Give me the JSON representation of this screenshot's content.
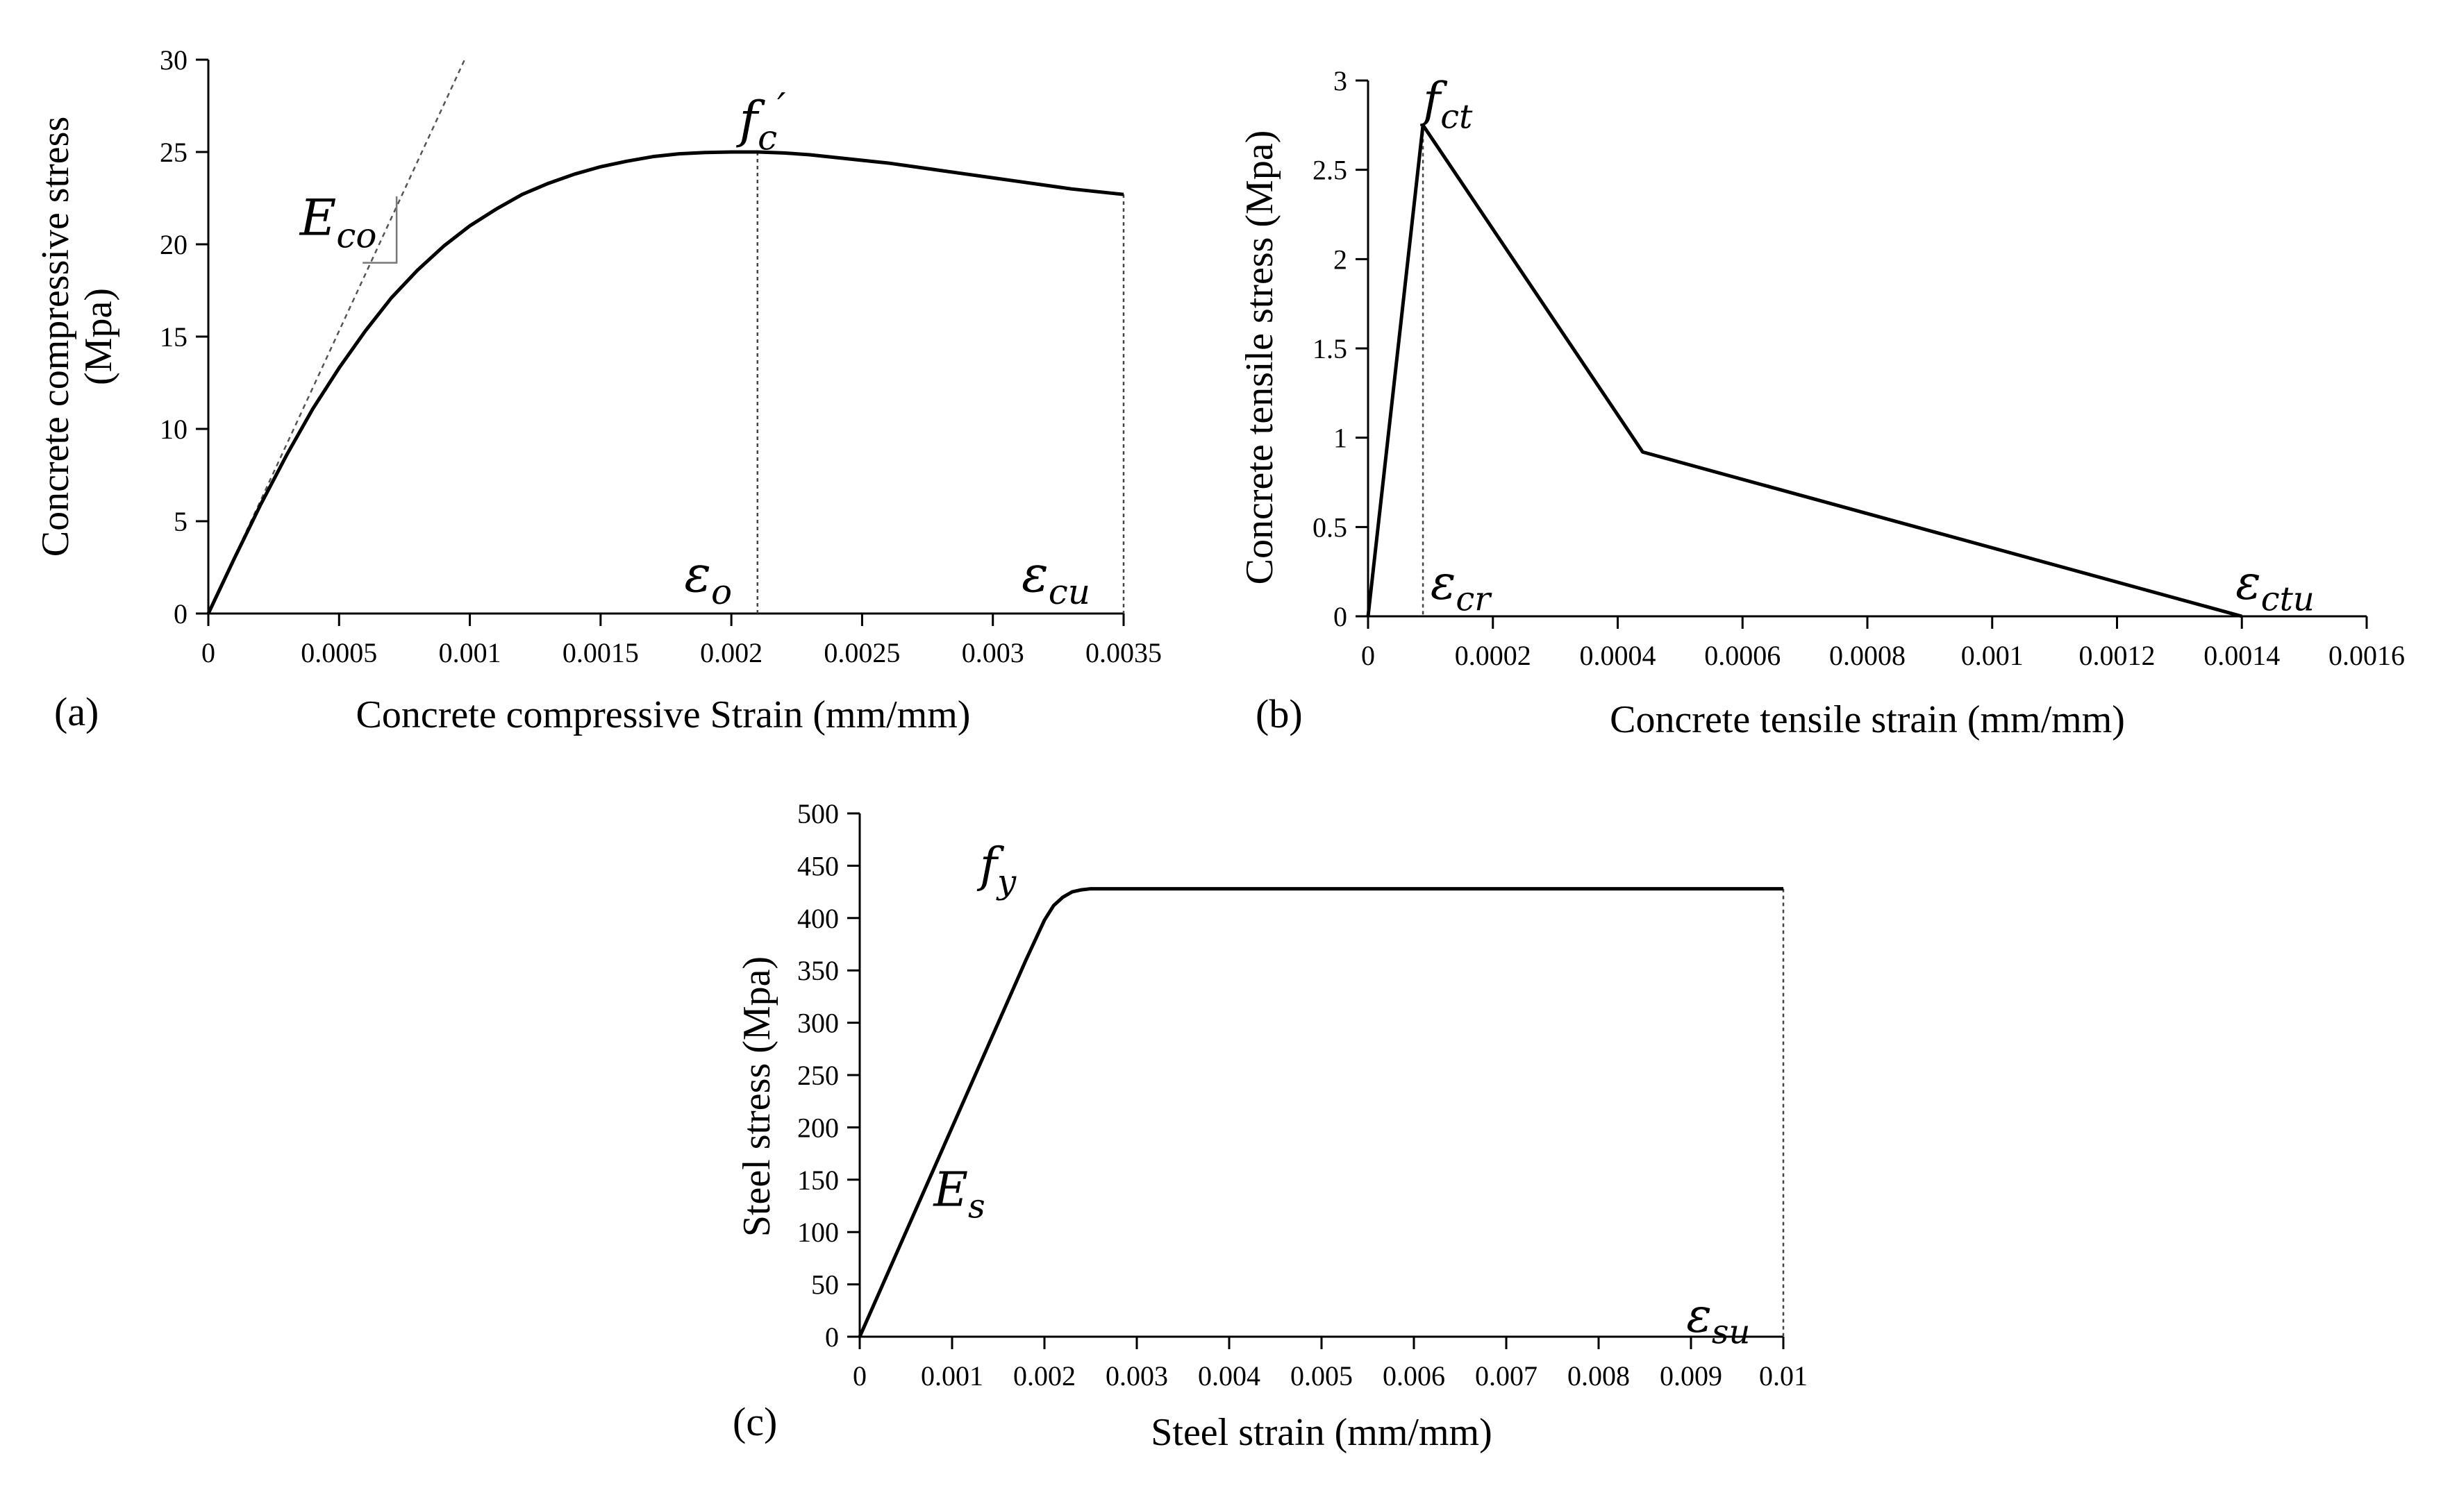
{
  "chart_data": [
    {
      "type": "line",
      "panel_label": "(a)",
      "xlabel": "Concrete compressive Strain (mm/mm)",
      "ylabel_lines": [
        "Concrete compressive stress",
        "(Mpa)"
      ],
      "xlim": [
        0,
        0.0035
      ],
      "ylim": [
        0,
        30
      ],
      "x_ticks": [
        0,
        0.0005,
        0.001,
        0.0015,
        0.002,
        0.0025,
        0.003,
        0.0035
      ],
      "x_tick_labels": [
        "0",
        "0.0005",
        "0.001",
        "0.0015",
        "0.002",
        "0.0025",
        "0.003",
        "0.0035"
      ],
      "y_ticks": [
        0,
        5,
        10,
        15,
        20,
        25,
        30
      ],
      "y_tick_labels": [
        "0",
        "5",
        "10",
        "15",
        "20",
        "25",
        "30"
      ],
      "grid": false,
      "series": [
        {
          "x": [
            0,
            0.0001,
            0.0002,
            0.0003,
            0.0004,
            0.0005,
            0.0006,
            0.0007,
            0.0008,
            0.0009,
            0.001,
            0.0011,
            0.0012,
            0.0013,
            0.0014,
            0.0015,
            0.0016,
            0.0017,
            0.0018,
            0.0019,
            0.002,
            0.0021,
            0.0022,
            0.0023,
            0.0024,
            0.0025,
            0.0026,
            0.0027,
            0.0028,
            0.0029,
            0.003,
            0.0031,
            0.0032,
            0.0033,
            0.0034,
            0.0035
          ],
          "y": [
            0,
            3.0,
            5.9,
            8.6,
            11.1,
            13.3,
            15.3,
            17.1,
            18.6,
            19.9,
            21.0,
            21.9,
            22.7,
            23.3,
            23.8,
            24.2,
            24.5,
            24.75,
            24.9,
            24.97,
            25.0,
            25.0,
            24.95,
            24.85,
            24.7,
            24.55,
            24.4,
            24.2,
            24.0,
            23.8,
            23.6,
            23.4,
            23.2,
            23.0,
            22.85,
            22.7
          ]
        }
      ],
      "tangent_line": {
        "x": [
          0,
          0.00098
        ],
        "y": [
          0,
          30
        ]
      },
      "slope_triangle": {
        "x": [
          0.00059,
          0.00072
        ],
        "y": [
          19.0,
          22.6
        ]
      },
      "reference_lines": [
        {
          "x": 0.0021,
          "y": 25.0
        },
        {
          "x": 0.0035,
          "y": 22.7
        }
      ],
      "annotations": [
        {
          "base": "E",
          "sub": "co",
          "x": 0.00035,
          "y": 20.5
        },
        {
          "base": "f",
          "sub": "c",
          "sup": "′",
          "x": 0.00203,
          "y": 25.8
        },
        {
          "base": "ε",
          "sub": "o",
          "x": 0.00182,
          "y": 1.2
        },
        {
          "base": "ε",
          "sub": "cu",
          "x": 0.00311,
          "y": 1.2
        }
      ]
    },
    {
      "type": "line",
      "panel_label": "(b)",
      "xlabel": "Concrete tensile strain (mm/mm)",
      "ylabel_lines": [
        "Concrete tensile stress (Mpa)"
      ],
      "xlim": [
        0,
        0.0016
      ],
      "ylim": [
        0,
        3
      ],
      "x_ticks": [
        0,
        0.0002,
        0.0004,
        0.0006,
        0.0008,
        0.001,
        0.0012,
        0.0014,
        0.0016
      ],
      "x_tick_labels": [
        "0",
        "0.0002",
        "0.0004",
        "0.0006",
        "0.0008",
        "0.001",
        "0.0012",
        "0.0014",
        "0.0016"
      ],
      "y_ticks": [
        0,
        0.5,
        1,
        1.5,
        2,
        2.5,
        3
      ],
      "y_tick_labels": [
        "0",
        "0.5",
        "1",
        "1.5",
        "2",
        "2.5",
        "3"
      ],
      "grid": false,
      "series": [
        {
          "x": [
            0,
            8.8e-05,
            0.00044,
            0.0014
          ],
          "y": [
            0,
            2.75,
            0.92,
            0
          ]
        }
      ],
      "reference_lines": [
        {
          "x": 8.8e-05,
          "y": 2.75
        }
      ],
      "annotations": [
        {
          "base": "f",
          "sub": "ct",
          "x": 8.8e-05,
          "y": 2.8
        },
        {
          "base": "ε",
          "sub": "cr",
          "x": 0.0001,
          "y": 0.1
        },
        {
          "base": "ε",
          "sub": "ctu",
          "x": 0.00139,
          "y": 0.1
        }
      ]
    },
    {
      "type": "line",
      "panel_label": "(c)",
      "xlabel": "Steel strain (mm/mm)",
      "ylabel_lines": [
        "Steel stress (Mpa)"
      ],
      "xlim": [
        0,
        0.01
      ],
      "ylim": [
        0,
        500
      ],
      "x_ticks": [
        0,
        0.001,
        0.002,
        0.003,
        0.004,
        0.005,
        0.006,
        0.007,
        0.008,
        0.009,
        0.01
      ],
      "x_tick_labels": [
        "0",
        "0.001",
        "0.002",
        "0.003",
        "0.004",
        "0.005",
        "0.006",
        "0.007",
        "0.008",
        "0.009",
        "0.01"
      ],
      "y_ticks": [
        0,
        50,
        100,
        150,
        200,
        250,
        300,
        350,
        400,
        450,
        500
      ],
      "y_tick_labels": [
        "0",
        "50",
        "100",
        "150",
        "200",
        "250",
        "300",
        "350",
        "400",
        "450",
        "500"
      ],
      "grid": false,
      "series": [
        {
          "x": [
            0,
            0.0005,
            0.001,
            0.0015,
            0.0018,
            0.002,
            0.0021,
            0.0022,
            0.0023,
            0.0024,
            0.0025,
            0.0027,
            0.003,
            0.004,
            0.006,
            0.008,
            0.01
          ],
          "y": [
            0,
            100,
            200,
            300,
            360,
            398,
            412,
            420,
            425,
            427,
            428,
            428,
            428,
            428,
            428,
            428,
            428
          ]
        }
      ],
      "reference_lines": [
        {
          "x": 0.01,
          "y": 428
        }
      ],
      "annotations": [
        {
          "base": "f",
          "sub": "y",
          "x": 0.0013,
          "y": 435
        },
        {
          "base": "E",
          "sub": "s",
          "x": 0.0008,
          "y": 125
        },
        {
          "base": "ε",
          "sub": "su",
          "x": 0.00895,
          "y": 5
        }
      ]
    }
  ]
}
